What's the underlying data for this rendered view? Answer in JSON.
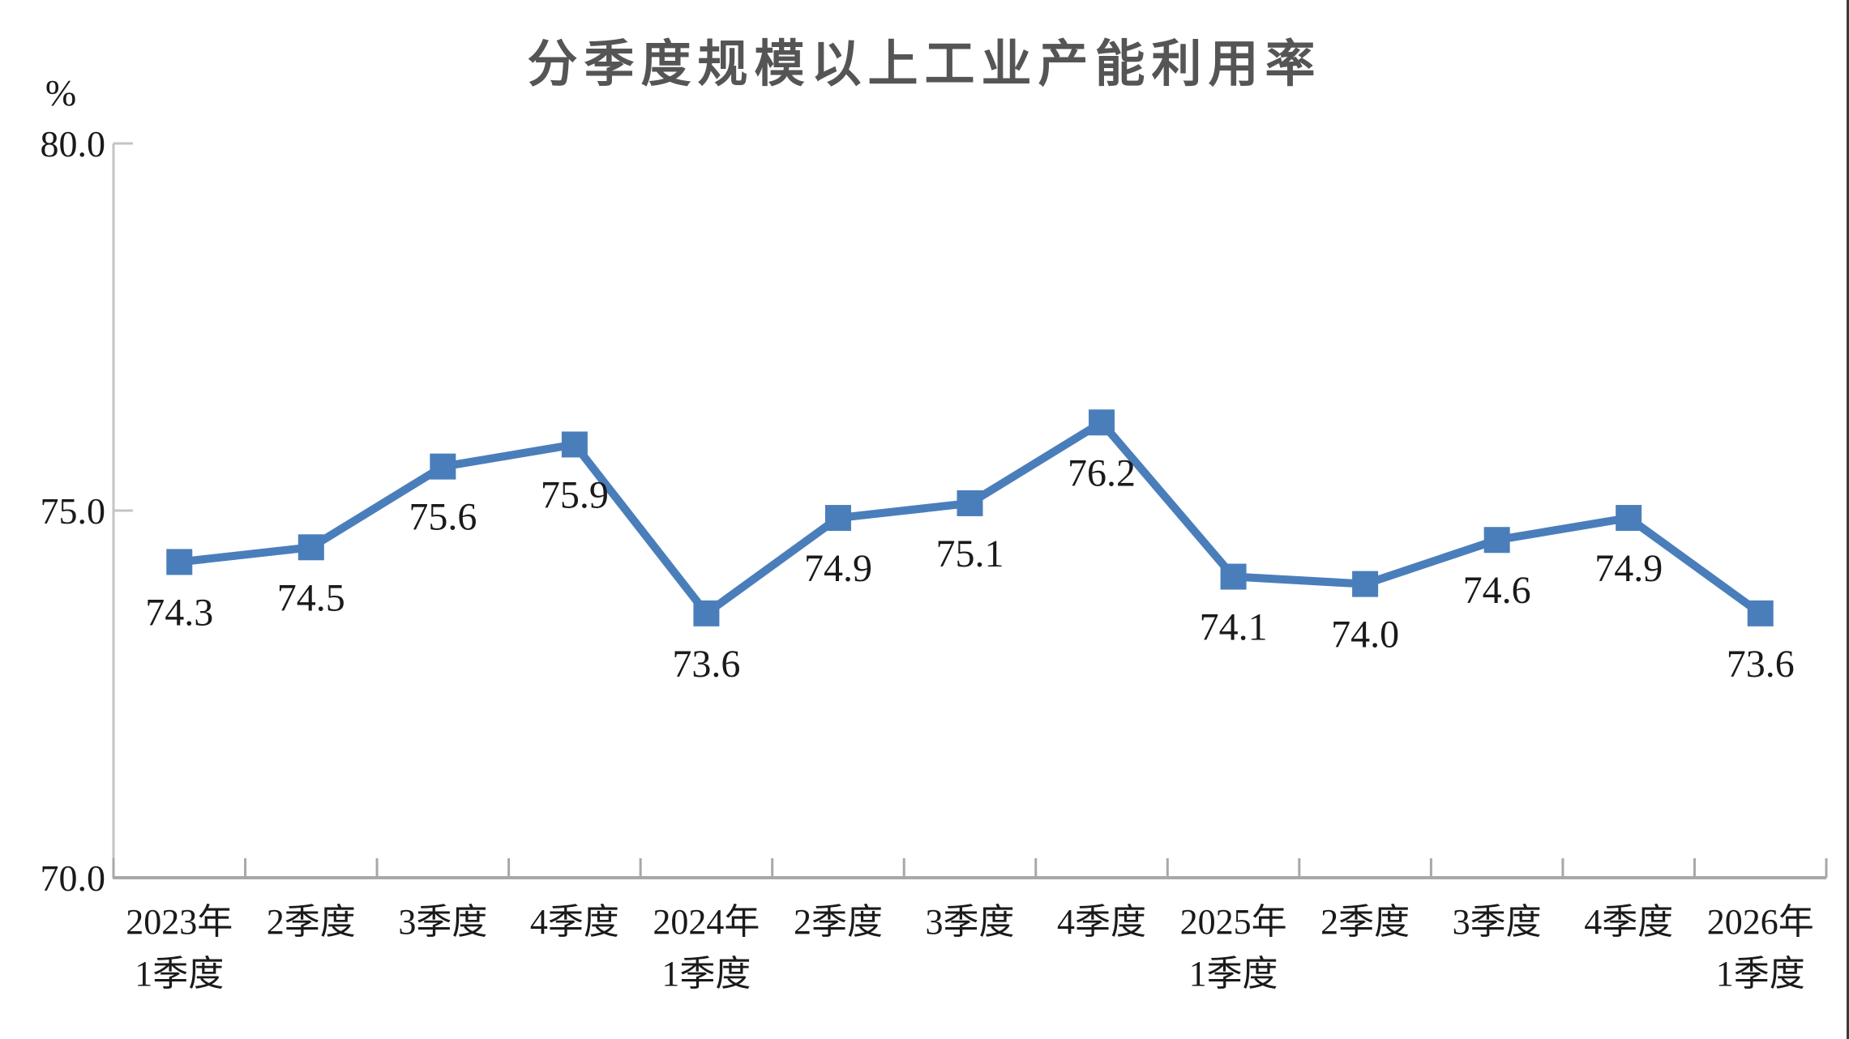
{
  "chart_data": {
    "type": "line",
    "title": "分季度规模以上工业产能利用率",
    "unit_label": "%",
    "categories": [
      [
        "2023年",
        "1季度"
      ],
      [
        "2季度"
      ],
      [
        "3季度"
      ],
      [
        "4季度"
      ],
      [
        "2024年",
        "1季度"
      ],
      [
        "2季度"
      ],
      [
        "3季度"
      ],
      [
        "4季度"
      ],
      [
        "2025年",
        "1季度"
      ],
      [
        "2季度"
      ],
      [
        "3季度"
      ],
      [
        "4季度"
      ],
      [
        "2026年",
        "1季度"
      ]
    ],
    "values": [
      74.3,
      74.5,
      75.6,
      75.9,
      73.6,
      74.9,
      75.1,
      76.2,
      74.1,
      74.0,
      74.6,
      74.9,
      73.6
    ],
    "data_labels": [
      "74.3",
      "74.5",
      "75.6",
      "75.9",
      "73.6",
      "74.9",
      "75.1",
      "76.2",
      "74.1",
      "74.0",
      "74.6",
      "74.9",
      "73.6"
    ],
    "ylim": [
      70,
      80
    ],
    "yticks": [
      {
        "value": 80,
        "label": "80.0"
      },
      {
        "value": 75,
        "label": "75.0"
      },
      {
        "value": 70,
        "label": "70.0"
      }
    ],
    "grid": false,
    "legend_position": "none",
    "marker_shape": "square",
    "colors": {
      "line": "#4a7ebb",
      "marker": "#4a7ebb",
      "axis_x": "#a8a8a8",
      "axis_y": "#c4c4c4",
      "text": "#1a1a1a",
      "title": "#555555",
      "edge_border": "#3a3a3a"
    }
  }
}
